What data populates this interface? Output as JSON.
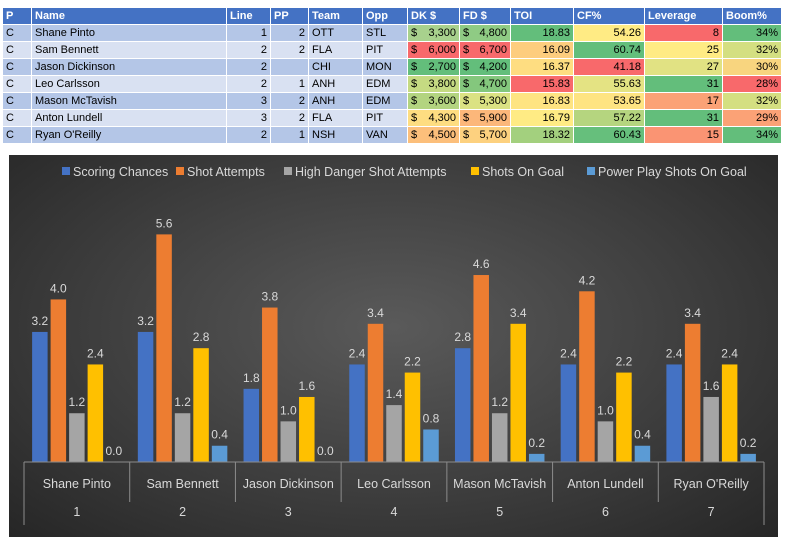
{
  "table": {
    "headers": [
      "P",
      "Name",
      "Line",
      "PP",
      "Team",
      "Opp",
      "DK $",
      "FD $",
      "TOI",
      "CF%",
      "Leverage",
      "Boom%"
    ],
    "rows": [
      {
        "p": "C",
        "name": "Shane Pinto",
        "line": "1",
        "pp": "2",
        "team": "OTT",
        "opp": "STL",
        "dk": "3,300",
        "fd": "4,800",
        "toi": "18.83",
        "cf": "54.26",
        "leverage": "8",
        "boom": "34%"
      },
      {
        "p": "C",
        "name": "Sam Bennett",
        "line": "2",
        "pp": "2",
        "team": "FLA",
        "opp": "PIT",
        "dk": "6,000",
        "fd": "6,700",
        "toi": "16.09",
        "cf": "60.74",
        "leverage": "25",
        "boom": "32%"
      },
      {
        "p": "C",
        "name": "Jason Dickinson",
        "line": "2",
        "pp": "",
        "team": "CHI",
        "opp": "MON",
        "dk": "2,700",
        "fd": "4,200",
        "toi": "16.37",
        "cf": "41.18",
        "leverage": "27",
        "boom": "30%"
      },
      {
        "p": "C",
        "name": "Leo Carlsson",
        "line": "2",
        "pp": "1",
        "team": "ANH",
        "opp": "EDM",
        "dk": "3,800",
        "fd": "4,700",
        "toi": "15.83",
        "cf": "55.63",
        "leverage": "31",
        "boom": "28%"
      },
      {
        "p": "C",
        "name": "Mason McTavish",
        "line": "3",
        "pp": "2",
        "team": "ANH",
        "opp": "EDM",
        "dk": "3,600",
        "fd": "5,300",
        "toi": "16.83",
        "cf": "53.65",
        "leverage": "17",
        "boom": "32%"
      },
      {
        "p": "C",
        "name": "Anton Lundell",
        "line": "3",
        "pp": "2",
        "team": "FLA",
        "opp": "PIT",
        "dk": "4,300",
        "fd": "5,900",
        "toi": "16.79",
        "cf": "57.22",
        "leverage": "31",
        "boom": "29%"
      },
      {
        "p": "C",
        "name": "Ryan O'Reilly",
        "line": "2",
        "pp": "1",
        "team": "NSH",
        "opp": "VAN",
        "dk": "4,500",
        "fd": "5,700",
        "toi": "18.32",
        "cf": "60.43",
        "leverage": "15",
        "boom": "34%"
      }
    ],
    "currency_symbol": "$",
    "cell_colors": {
      "dk": [
        "#a8d18d",
        "#f8696b",
        "#63be7b",
        "#c5da82",
        "#b3d480",
        "#fedd81",
        "#fcbf7b"
      ],
      "fd": [
        "#8fcb84",
        "#f8696b",
        "#63be7b",
        "#84c77d",
        "#dbe283",
        "#fcb77a",
        "#fdd17f"
      ],
      "toi": [
        "#63be7b",
        "#fdcd7e",
        "#fedd81",
        "#f8696b",
        "#fee482",
        "#ffeb84",
        "#a3d07e"
      ],
      "cf": [
        "#ffeb84",
        "#63be7b",
        "#f8696b",
        "#e4e383",
        "#fee482",
        "#b5d57f",
        "#66bf7c"
      ],
      "leverage": [
        "#f8696b",
        "#ffeb84",
        "#e1e283",
        "#63be7b",
        "#fba276",
        "#63be7b",
        "#fa9473"
      ],
      "boom": [
        "#63be7b",
        "#d4df81",
        "#f8d57f",
        "#f8696b",
        "#d4df81",
        "#fba276",
        "#63be7b"
      ]
    }
  },
  "chart_data": {
    "type": "bar",
    "categories": [
      "Shane Pinto",
      "Sam Bennett",
      "Jason Dickinson",
      "Leo Carlsson",
      "Mason McTavish",
      "Anton Lundell",
      "Ryan O'Reilly"
    ],
    "category_numbers": [
      "1",
      "2",
      "3",
      "4",
      "5",
      "6",
      "7"
    ],
    "series": [
      {
        "name": "Scoring Chances",
        "color": "#4472c4",
        "values": [
          3.2,
          3.2,
          1.8,
          2.4,
          2.8,
          2.4,
          2.4
        ]
      },
      {
        "name": "Shot Attempts",
        "color": "#ed7d31",
        "values": [
          4.0,
          5.6,
          3.8,
          3.4,
          4.6,
          4.2,
          3.4
        ]
      },
      {
        "name": "High Danger Shot Attempts",
        "color": "#a5a5a5",
        "values": [
          1.2,
          1.2,
          1.0,
          1.4,
          1.2,
          1.0,
          1.6
        ]
      },
      {
        "name": "Shots On Goal",
        "color": "#ffc000",
        "values": [
          2.4,
          2.8,
          1.6,
          2.2,
          3.4,
          2.2,
          2.4
        ]
      },
      {
        "name": "Power Play Shots On Goal",
        "color": "#5b9bd5",
        "values": [
          0.0,
          0.4,
          0.0,
          0.8,
          0.2,
          0.4,
          0.2
        ]
      }
    ],
    "ylim": [
      0,
      6.2
    ],
    "legend_position": "top",
    "grid": false,
    "title": "",
    "xlabel": "",
    "ylabel": ""
  }
}
